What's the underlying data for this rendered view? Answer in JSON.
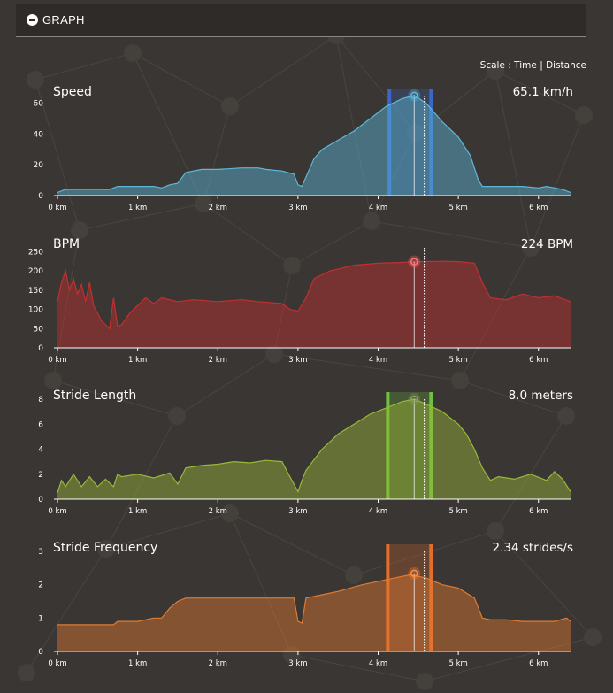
{
  "header": {
    "title": "GRAPH"
  },
  "scale": {
    "label": "Scale :",
    "time": "Time",
    "separator": "|",
    "distance": "Distance"
  },
  "x_ticks": [
    "0 km",
    "1 km",
    "2 km",
    "3 km",
    "4 km",
    "5 km",
    "6 km"
  ],
  "colors": {
    "background": "#3a3633",
    "header": "#2e2b29"
  },
  "chart_data": [
    {
      "type": "area",
      "title": "Speed",
      "current_value": "65.1 km/h",
      "color": "#5cb8d9",
      "window_color": "#3a67c7",
      "cursor_color": "#5cb8d9",
      "xlim": [
        0,
        6.4
      ],
      "ylim": [
        0,
        65
      ],
      "yticks": [
        0,
        20,
        40,
        60
      ],
      "window": [
        4.14,
        4.66
      ],
      "cursor_x": 4.45,
      "cursor_y": 65.1,
      "dotted_x": 4.58,
      "x": [
        0,
        0.1,
        0.3,
        0.5,
        0.65,
        0.7,
        0.75,
        1.0,
        1.2,
        1.3,
        1.4,
        1.5,
        1.6,
        1.8,
        2.0,
        2.3,
        2.5,
        2.6,
        2.8,
        2.95,
        3.0,
        3.05,
        3.1,
        3.2,
        3.3,
        3.5,
        3.7,
        3.9,
        4.1,
        4.3,
        4.45,
        4.6,
        4.8,
        5.0,
        5.15,
        5.25,
        5.3,
        5.4,
        5.6,
        5.8,
        6.0,
        6.1,
        6.2,
        6.3,
        6.4
      ],
      "y": [
        2,
        4,
        4,
        4,
        4,
        5,
        6,
        6,
        6,
        5,
        7,
        8,
        15,
        17,
        17,
        18,
        18,
        17,
        16,
        14,
        7,
        6,
        12,
        24,
        30,
        36,
        42,
        50,
        58,
        63,
        65.1,
        60,
        48,
        38,
        26,
        10,
        6,
        6,
        6,
        6,
        5,
        6,
        5,
        4,
        2
      ]
    },
    {
      "type": "area",
      "title": "BPM",
      "current_value": "224 BPM",
      "color": "#c03030",
      "window_color": "",
      "cursor_color": "#ff7070",
      "xlim": [
        0,
        6.4
      ],
      "ylim": [
        0,
        260
      ],
      "yticks": [
        0,
        50,
        100,
        150,
        200,
        250
      ],
      "window": null,
      "cursor_x": 4.45,
      "cursor_y": 224,
      "dotted_x": 4.58,
      "x": [
        0,
        0.05,
        0.1,
        0.15,
        0.2,
        0.25,
        0.3,
        0.35,
        0.4,
        0.45,
        0.5,
        0.55,
        0.6,
        0.65,
        0.7,
        0.75,
        0.8,
        0.9,
        1.0,
        1.1,
        1.2,
        1.3,
        1.5,
        1.7,
        2.0,
        2.3,
        2.5,
        2.8,
        2.9,
        3.0,
        3.1,
        3.2,
        3.4,
        3.7,
        4.0,
        4.3,
        4.5,
        4.8,
        5.0,
        5.2,
        5.3,
        5.4,
        5.6,
        5.8,
        6.0,
        6.2,
        6.4
      ],
      "y": [
        120,
        170,
        200,
        150,
        180,
        140,
        165,
        120,
        170,
        110,
        90,
        70,
        60,
        50,
        130,
        55,
        60,
        90,
        110,
        130,
        115,
        130,
        120,
        125,
        120,
        125,
        120,
        115,
        100,
        95,
        130,
        180,
        200,
        215,
        220,
        222,
        224,
        225,
        224,
        220,
        170,
        130,
        125,
        140,
        130,
        135,
        120
      ]
    },
    {
      "type": "area",
      "title": "Stride Length",
      "current_value": "8.0 meters",
      "color": "#9ab838",
      "window_color": "#6ec040",
      "cursor_color": "#8a9a60",
      "xlim": [
        0,
        6.4
      ],
      "ylim": [
        0,
        8
      ],
      "yticks": [
        0,
        2,
        4,
        6,
        8
      ],
      "window": [
        4.12,
        4.66
      ],
      "cursor_x": 4.45,
      "cursor_y": 8.0,
      "dotted_x": 4.58,
      "x": [
        0,
        0.05,
        0.1,
        0.2,
        0.3,
        0.4,
        0.5,
        0.6,
        0.7,
        0.75,
        0.8,
        1.0,
        1.2,
        1.4,
        1.5,
        1.6,
        1.8,
        2.0,
        2.2,
        2.4,
        2.6,
        2.8,
        2.9,
        3.0,
        3.05,
        3.1,
        3.3,
        3.5,
        3.7,
        3.9,
        4.1,
        4.3,
        4.45,
        4.6,
        4.8,
        5.0,
        5.1,
        5.2,
        5.3,
        5.4,
        5.5,
        5.7,
        5.9,
        6.1,
        6.2,
        6.3,
        6.4
      ],
      "y": [
        0.5,
        1.5,
        1,
        2,
        1,
        1.8,
        1,
        1.6,
        1,
        2,
        1.8,
        2,
        1.7,
        2.1,
        1.2,
        2.5,
        2.7,
        2.8,
        3,
        2.9,
        3.1,
        3,
        1.8,
        0.6,
        1.5,
        2.3,
        4,
        5.2,
        6,
        6.8,
        7.3,
        7.8,
        8.0,
        7.6,
        7,
        6,
        5.2,
        4,
        2.5,
        1.5,
        1.8,
        1.6,
        2,
        1.5,
        2.2,
        1.6,
        0.6
      ]
    },
    {
      "type": "area",
      "title": "Stride Frequency",
      "current_value": "2.34 strides/s",
      "color": "#e07a30",
      "window_color": "#e36d2a",
      "cursor_color": "#ff8a3a",
      "xlim": [
        0,
        6.4
      ],
      "ylim": [
        0,
        3
      ],
      "yticks": [
        0,
        1,
        2,
        3
      ],
      "window": [
        4.12,
        4.66
      ],
      "cursor_x": 4.45,
      "cursor_y": 2.34,
      "dotted_x": 4.58,
      "x": [
        0,
        0.05,
        0.3,
        0.6,
        0.7,
        0.75,
        1.0,
        1.2,
        1.3,
        1.4,
        1.5,
        1.6,
        1.8,
        2.0,
        2.3,
        2.6,
        2.8,
        2.95,
        3.0,
        3.05,
        3.1,
        3.3,
        3.5,
        3.8,
        4.0,
        4.2,
        4.4,
        4.6,
        4.8,
        5.0,
        5.2,
        5.3,
        5.4,
        5.6,
        5.8,
        6.0,
        6.2,
        6.35,
        6.4
      ],
      "y": [
        0.8,
        0.8,
        0.8,
        0.8,
        0.8,
        0.9,
        0.9,
        1.0,
        1.0,
        1.3,
        1.5,
        1.6,
        1.6,
        1.6,
        1.6,
        1.6,
        1.6,
        1.6,
        0.9,
        0.85,
        1.6,
        1.7,
        1.8,
        2.0,
        2.1,
        2.2,
        2.3,
        2.2,
        2.0,
        1.9,
        1.6,
        1.0,
        0.95,
        0.95,
        0.9,
        0.9,
        0.9,
        1.0,
        0.9
      ]
    }
  ]
}
